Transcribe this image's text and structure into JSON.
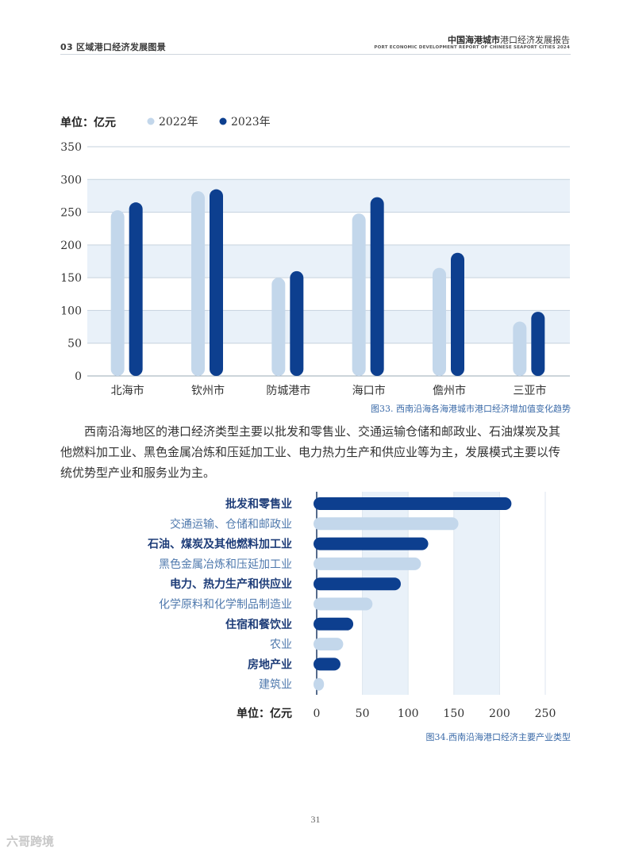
{
  "header": {
    "section": "03 区域港口经济发展图景",
    "report_cn_bold": "中国海港城市",
    "report_cn_rest": "港口经济发展报告",
    "report_en": "PORT ECONOMIC DEVELOPMENT REPORT OF CHINESE SEAPORT CITIES 2024"
  },
  "paragraph": "西南沿海地区的港口经济类型主要以批发和零售业、交通运输仓储和邮政业、石油煤炭及其他燃料加工业、黑色金属冶炼和压延加工业、电力热力生产和供应业等为主，发展模式主要以传统优势型产业和服务业为主。",
  "page_number": "31",
  "watermark": "六哥跨境",
  "colors": {
    "light": "#c3d7eb",
    "dark": "#0d3f8f",
    "band": "#e9f1f9",
    "grid": "#c6d2de"
  },
  "chart_data": [
    {
      "type": "bar",
      "title": "",
      "unit_label": "单位：亿元",
      "caption": "图33. 西南沿海各海港城市港口经济增加值变化趋势",
      "categories": [
        "北海市",
        "钦州市",
        "防城港市",
        "海口市",
        "儋州市",
        "三亚市"
      ],
      "series": [
        {
          "name": "2022年",
          "values": [
            253,
            282,
            150,
            248,
            165,
            83
          ]
        },
        {
          "name": "2023年",
          "values": [
            265,
            285,
            160,
            273,
            188,
            98
          ]
        }
      ],
      "yticks": [
        0,
        50,
        100,
        150,
        200,
        250,
        300,
        350
      ],
      "ylim": [
        0,
        350
      ],
      "grid": true,
      "legend": "top-left"
    },
    {
      "type": "bar",
      "orientation": "horizontal",
      "unit_label": "单位：亿元",
      "caption": "图34.西南沿海港口经济主要产业类型",
      "categories": [
        "批发和零售业",
        "交通运输、仓储和邮政业",
        "石油、煤炭及其他燃料加工业",
        "黑色金属冶炼和压延加工业",
        "电力、热力生产和供应业",
        "化学原料和化学制品制造业",
        "住宿和餐饮业",
        "农业",
        "房地产业",
        "建筑业"
      ],
      "values": [
        213,
        155,
        122,
        114,
        92,
        61,
        40,
        29,
        26,
        8
      ],
      "highlight": [
        true,
        false,
        true,
        false,
        true,
        false,
        true,
        false,
        true,
        false
      ],
      "xticks": [
        0,
        50,
        100,
        150,
        200,
        250
      ],
      "xlim": [
        0,
        250
      ]
    }
  ]
}
